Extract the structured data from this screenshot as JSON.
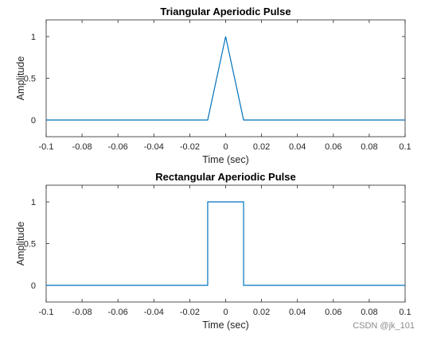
{
  "chart_data": [
    {
      "type": "line",
      "title": "Triangular Aperiodic Pulse",
      "xlabel": "Time (sec)",
      "ylabel": "Amplitude",
      "xlim": [
        -0.1,
        0.1
      ],
      "ylim": [
        -0.2,
        1.2
      ],
      "xticks": [
        -0.1,
        -0.08,
        -0.06,
        -0.04,
        -0.02,
        0,
        0.02,
        0.04,
        0.06,
        0.08,
        0.1
      ],
      "xtick_labels": [
        "-0.1",
        "-0.08",
        "-0.06",
        "-0.04",
        "-0.02",
        "0",
        "0.02",
        "0.04",
        "0.06",
        "0.08",
        "0.1"
      ],
      "yticks": [
        0,
        0.5,
        1
      ],
      "ytick_labels": [
        "0",
        "0.5",
        "1"
      ],
      "grid": false,
      "series": [
        {
          "color": "#0072bd",
          "x": [
            -0.1,
            -0.01,
            0,
            0.01,
            0.1
          ],
          "y": [
            0,
            0,
            1,
            0,
            0
          ]
        }
      ]
    },
    {
      "type": "line",
      "title": "Rectangular Aperiodic Pulse",
      "xlabel": "Time (sec)",
      "ylabel": "Amplitude",
      "xlim": [
        -0.1,
        0.1
      ],
      "ylim": [
        -0.2,
        1.2
      ],
      "xticks": [
        -0.1,
        -0.08,
        -0.06,
        -0.04,
        -0.02,
        0,
        0.02,
        0.04,
        0.06,
        0.08,
        0.1
      ],
      "xtick_labels": [
        "-0.1",
        "-0.08",
        "-0.06",
        "-0.04",
        "-0.02",
        "0",
        "0.02",
        "0.04",
        "0.06",
        "0.08",
        "0.1"
      ],
      "yticks": [
        0,
        0.5,
        1
      ],
      "ytick_labels": [
        "0",
        "0.5",
        "1"
      ],
      "grid": false,
      "series": [
        {
          "color": "#0072bd",
          "x": [
            -0.1,
            -0.01,
            -0.01,
            0.01,
            0.01,
            0.1
          ],
          "y": [
            0,
            0,
            1,
            1,
            0,
            0
          ]
        }
      ]
    }
  ],
  "watermark": "CSDN @jk_101"
}
